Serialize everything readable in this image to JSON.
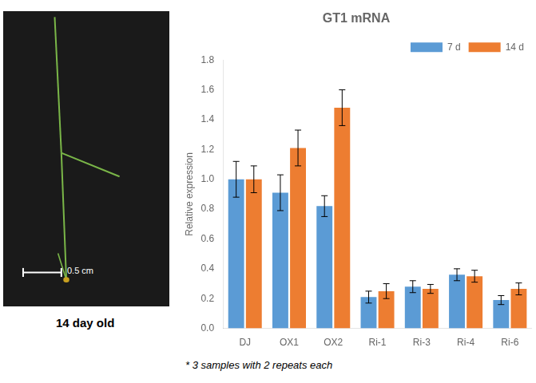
{
  "chart_data": {
    "type": "bar",
    "title": "GT1 mRNA",
    "y_label": "Relative expression",
    "categories": [
      "DJ",
      "OX1",
      "OX2",
      "Ri-1",
      "Ri-3",
      "Ri-4",
      "Ri-6"
    ],
    "series": [
      {
        "name": "7 d",
        "color": "#5B9BD5",
        "values": [
          1.0,
          0.91,
          0.82,
          0.21,
          0.28,
          0.36,
          0.19
        ],
        "errors": [
          0.12,
          0.12,
          0.07,
          0.04,
          0.04,
          0.04,
          0.03
        ]
      },
      {
        "name": "14 d",
        "color": "#ED7D31",
        "values": [
          1.0,
          1.21,
          1.48,
          0.25,
          0.265,
          0.35,
          0.265
        ],
        "errors": [
          0.09,
          0.12,
          0.12,
          0.05,
          0.03,
          0.04,
          0.04
        ]
      }
    ],
    "ylim": [
      0,
      1.8
    ],
    "yticks": [
      {
        "value": 0,
        "label": "0.0"
      },
      0.2,
      0.4,
      0.6,
      0.8,
      {
        "value": 1.0,
        "label": "1.0"
      },
      1.2,
      1.4,
      1.6,
      1.8
    ],
    "grid": false,
    "legend": "upper right",
    "annotations": [
      "0.5 cm",
      "14 day old",
      "* 3 samples with 2 repeats each"
    ]
  }
}
